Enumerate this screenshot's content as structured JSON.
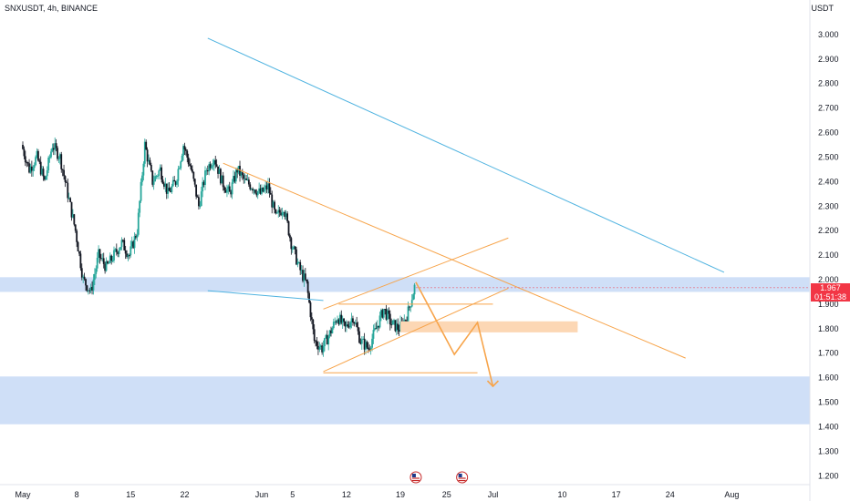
{
  "header": {
    "title": "SNXUSDT, 4h, BINANCE",
    "unit": "USDT"
  },
  "colors": {
    "up": "#26a69a",
    "down": "#131722",
    "zone": "#cfdff7",
    "blue_line": "#4fb3e0",
    "orange": "#f7a44a",
    "orange_zone": "#fcd7b4",
    "price_tag": "#f23645"
  },
  "chart_data": {
    "type": "candlestick",
    "symbol": "SNXUSDT",
    "interval": "4h",
    "exchange": "BINANCE",
    "y_axis": {
      "unit": "USDT",
      "ylim": [
        1.16,
        3.14
      ],
      "ticks": [
        "3.000",
        "2.900",
        "2.800",
        "2.700",
        "2.600",
        "2.500",
        "2.400",
        "2.300",
        "2.200",
        "2.100",
        "2.000",
        "1.900",
        "1.800",
        "1.700",
        "1.600",
        "1.500",
        "1.400",
        "1.300",
        "1.200"
      ]
    },
    "x_axis": {
      "ticks": [
        "May",
        "8",
        "15",
        "22",
        "Jun",
        "5",
        "12",
        "19",
        "25",
        "Jul",
        "10",
        "17",
        "24",
        "Aug"
      ]
    },
    "last_price": {
      "value": "1.967",
      "countdown": "01:51:38"
    },
    "price_path": [
      [
        "May 1",
        2.55
      ],
      [
        "May 2",
        2.45
      ],
      [
        "May 3",
        2.5
      ],
      [
        "May 4",
        2.4
      ],
      [
        "May 5",
        2.55
      ],
      [
        "May 6",
        2.5
      ],
      [
        "May 7",
        2.35
      ],
      [
        "May 8",
        2.2
      ],
      [
        "May 9",
        2.0
      ],
      [
        "May 10",
        1.95
      ],
      [
        "May 11",
        2.1
      ],
      [
        "May 12",
        2.05
      ],
      [
        "May 13",
        2.1
      ],
      [
        "May 14",
        2.15
      ],
      [
        "May 15",
        2.1
      ],
      [
        "May 16",
        2.2
      ],
      [
        "May 17",
        2.55
      ],
      [
        "May 18",
        2.4
      ],
      [
        "May 19",
        2.45
      ],
      [
        "May 20",
        2.35
      ],
      [
        "May 21",
        2.4
      ],
      [
        "May 22",
        2.55
      ],
      [
        "May 23",
        2.45
      ],
      [
        "May 24",
        2.3
      ],
      [
        "May 25",
        2.45
      ],
      [
        "May 26",
        2.5
      ],
      [
        "May 27",
        2.4
      ],
      [
        "May 28",
        2.35
      ],
      [
        "May 29",
        2.45
      ],
      [
        "May 30",
        2.4
      ],
      [
        "May 31",
        2.38
      ],
      [
        "Jun 1",
        2.35
      ],
      [
        "Jun 2",
        2.38
      ],
      [
        "Jun 3",
        2.25
      ],
      [
        "Jun 4",
        2.3
      ],
      [
        "Jun 5",
        2.15
      ],
      [
        "Jun 6",
        2.05
      ],
      [
        "Jun 7",
        1.98
      ],
      [
        "Jun 8",
        1.75
      ],
      [
        "Jun 9",
        1.72
      ],
      [
        "Jun 10",
        1.78
      ],
      [
        "Jun 11",
        1.85
      ],
      [
        "Jun 12",
        1.8
      ],
      [
        "Jun 13",
        1.85
      ],
      [
        "Jun 14",
        1.75
      ],
      [
        "Jun 15",
        1.72
      ],
      [
        "Jun 16",
        1.8
      ],
      [
        "Jun 17",
        1.88
      ],
      [
        "Jun 18",
        1.82
      ],
      [
        "Jun 19",
        1.8
      ],
      [
        "Jun 20",
        1.85
      ],
      [
        "Jun 21",
        1.97
      ]
    ],
    "zones": [
      {
        "from": 1.95,
        "to": 2.01
      },
      {
        "from": 1.41,
        "to": 1.605
      }
    ],
    "orange_zone": {
      "from": 1.785,
      "to": 1.83
    },
    "lines": [
      {
        "name": "descending-trendline",
        "from": [
          "Apr 28",
          2.985
        ],
        "to": [
          "Jul 31",
          2.03
        ]
      },
      {
        "name": "support-trendline",
        "from": [
          "Apr 28",
          1.955
        ],
        "to": [
          "Jun 9",
          1.915
        ]
      },
      {
        "name": "triangle-upper",
        "from": [
          "May 27",
          2.475
        ],
        "to": [
          "Jul 26",
          1.68
        ]
      },
      {
        "name": "triangle-lower",
        "from": [
          "Jun 9",
          1.625
        ],
        "to": [
          "Jul 3",
          1.965
        ]
      },
      {
        "name": "channel-upper",
        "from": [
          "Jun 9",
          1.88
        ],
        "to": [
          "Jul 3",
          2.17
        ]
      },
      {
        "name": "horizontal-line",
        "from": [
          "Jun 11",
          1.9
        ],
        "to": [
          "Jul 1",
          1.9
        ]
      },
      {
        "name": "triangle-base",
        "from": [
          "Jun 9",
          1.62
        ],
        "to": [
          "Jun 29",
          1.62
        ]
      }
    ],
    "projection_path": [
      [
        "Jun 21",
        1.99
      ],
      [
        "Jun 26",
        1.695
      ],
      [
        "Jun 29",
        1.825
      ],
      [
        "Jul 1",
        1.565
      ]
    ]
  }
}
